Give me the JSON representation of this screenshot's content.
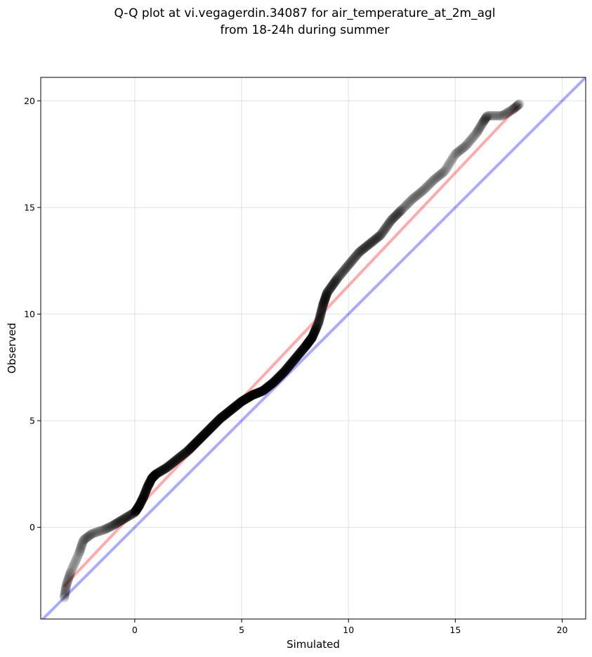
{
  "chart_data": {
    "type": "scatter",
    "title": [
      "Q-Q plot at vi.vegagerdin.34087 for air_temperature_at_2m_agl",
      "from 18-24h during summer"
    ],
    "xlabel": "Simulated",
    "ylabel": "Observed",
    "xlim": [
      -4.4,
      21.1
    ],
    "ylim": [
      -4.3,
      21.1
    ],
    "xticks": [
      0,
      5,
      10,
      15,
      20
    ],
    "yticks": [
      0,
      5,
      10,
      15,
      20
    ],
    "xtick_labels": [
      "0",
      "5",
      "10",
      "15",
      "20"
    ],
    "ytick_labels": [
      "0",
      "5",
      "10",
      "15",
      "20"
    ],
    "grid": true,
    "colors": {
      "points": "#000000",
      "fit_line": "#ff0000",
      "identity_line": "#0000ff"
    },
    "quantile_curve": [
      [
        -3.3,
        -3.3
      ],
      [
        -3.2,
        -2.7
      ],
      [
        -3.0,
        -2.1
      ],
      [
        -2.6,
        -1.2
      ],
      [
        -2.4,
        -0.6
      ],
      [
        -2.0,
        -0.3
      ],
      [
        -1.4,
        -0.1
      ],
      [
        -1.0,
        0.1
      ],
      [
        -0.5,
        0.4
      ],
      [
        0.0,
        0.7
      ],
      [
        0.2,
        1.0
      ],
      [
        0.4,
        1.4
      ],
      [
        0.6,
        1.9
      ],
      [
        0.8,
        2.3
      ],
      [
        1.0,
        2.5
      ],
      [
        1.5,
        2.8
      ],
      [
        2.0,
        3.2
      ],
      [
        2.5,
        3.6
      ],
      [
        3.0,
        4.1
      ],
      [
        3.5,
        4.6
      ],
      [
        4.0,
        5.1
      ],
      [
        4.5,
        5.5
      ],
      [
        5.0,
        5.9
      ],
      [
        5.5,
        6.2
      ],
      [
        6.0,
        6.4
      ],
      [
        6.5,
        6.8
      ],
      [
        7.0,
        7.3
      ],
      [
        7.5,
        7.9
      ],
      [
        8.0,
        8.5
      ],
      [
        8.3,
        8.9
      ],
      [
        8.6,
        9.6
      ],
      [
        8.8,
        10.4
      ],
      [
        9.0,
        11.0
      ],
      [
        9.5,
        11.7
      ],
      [
        10.0,
        12.3
      ],
      [
        10.5,
        12.9
      ],
      [
        11.0,
        13.3
      ],
      [
        11.5,
        13.7
      ],
      [
        12.0,
        14.4
      ],
      [
        12.5,
        14.9
      ],
      [
        13.0,
        15.4
      ],
      [
        13.5,
        15.8
      ],
      [
        14.0,
        16.3
      ],
      [
        14.5,
        16.7
      ],
      [
        15.0,
        17.5
      ],
      [
        15.5,
        17.9
      ],
      [
        16.0,
        18.5
      ],
      [
        16.3,
        19.0
      ],
      [
        16.5,
        19.3
      ],
      [
        17.2,
        19.3
      ],
      [
        17.7,
        19.6
      ],
      [
        18.0,
        19.85
      ]
    ],
    "fit_line": {
      "x": [
        -3.3,
        18.0
      ],
      "y": [
        -2.75,
        19.8
      ]
    },
    "identity_line": {
      "x": [
        -4.4,
        21.1
      ],
      "y": [
        -4.4,
        21.1
      ]
    }
  }
}
